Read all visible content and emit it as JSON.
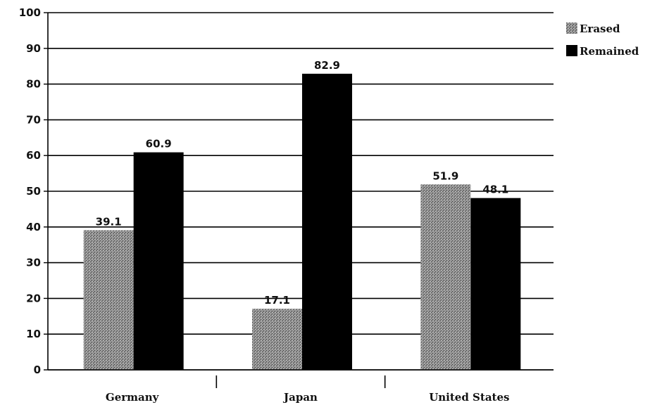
{
  "chart_data": {
    "type": "bar",
    "title": "",
    "xlabel": "",
    "ylabel": "",
    "categories": [
      "Germany",
      "Japan",
      "United States"
    ],
    "series": [
      {
        "name": "Erased",
        "values": [
          39.1,
          17.1,
          51.9
        ],
        "value_labels": [
          "39.1",
          "17.1",
          "51.9"
        ],
        "color": "#8a8a8a",
        "pattern": "stipple"
      },
      {
        "name": "Remained",
        "values": [
          60.9,
          82.9,
          48.1
        ],
        "value_labels": [
          "60.9",
          "82.9",
          "48.1"
        ],
        "color": "#000000"
      }
    ],
    "ylim": [
      0,
      100
    ],
    "yticks": [
      0,
      10,
      20,
      30,
      40,
      50,
      60,
      70,
      80,
      90,
      100
    ],
    "ytick_labels": [
      "0",
      "10",
      "20",
      "30",
      "40",
      "50",
      "60",
      "70",
      "80",
      "90",
      "100"
    ],
    "grid": "horizontal",
    "legend": "top-right"
  }
}
